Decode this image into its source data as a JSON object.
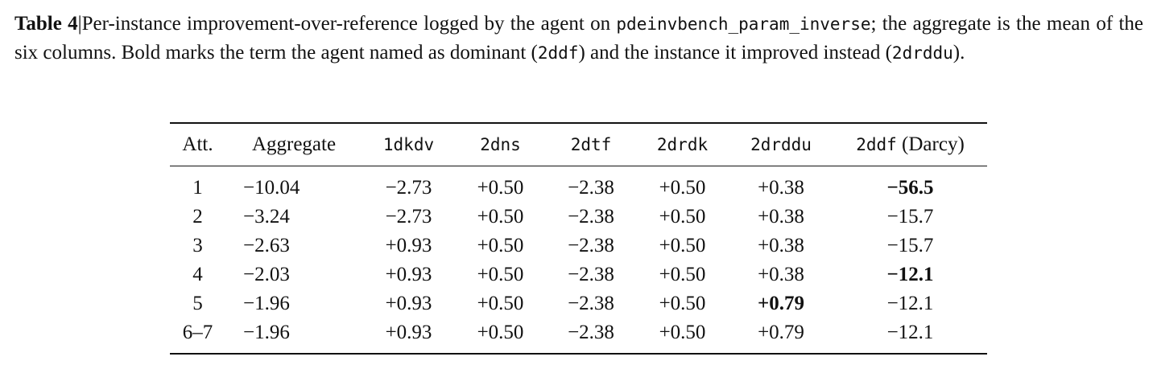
{
  "caption": [
    "Table 4",
    "|Per-instance improvement-over-reference logged by the agent on ",
    "pdeinvbench_param_inverse",
    "; the aggregate is the mean of the six columns. Bold marks the term the agent named as dominant (",
    "2ddf",
    ") and the instance it improved instead (",
    "2drddu",
    ")."
  ],
  "table": {
    "header": [
      "Att.",
      "Aggregate",
      "1dkdv",
      "2dns",
      "2dtf",
      "2drdk",
      "2drddu",
      {
        "code": "2ddf",
        "note": "(Darcy)"
      }
    ],
    "rows": [
      [
        "1",
        "−10.04",
        "−2.73",
        "+0.50",
        "−2.38",
        "+0.50",
        "+0.38",
        "−56.5"
      ],
      [
        "2",
        "−3.24",
        "−2.73",
        "+0.50",
        "−2.38",
        "+0.50",
        "+0.38",
        "−15.7"
      ],
      [
        "3",
        "−2.63",
        "+0.93",
        "+0.50",
        "−2.38",
        "+0.50",
        "+0.38",
        "−15.7"
      ],
      [
        "4",
        "−2.03",
        "+0.93",
        "+0.50",
        "−2.38",
        "+0.50",
        "+0.38",
        "−12.1"
      ],
      [
        "5",
        "−1.96",
        "+0.93",
        "+0.50",
        "−2.38",
        "+0.50",
        "+0.79",
        "−12.1"
      ],
      [
        "6–7",
        "−1.96",
        "+0.93",
        "+0.50",
        "−2.38",
        "+0.50",
        "+0.79",
        "−12.1"
      ]
    ],
    "bold": [
      [
        0,
        7
      ],
      [
        3,
        7
      ],
      [
        4,
        6
      ]
    ]
  }
}
